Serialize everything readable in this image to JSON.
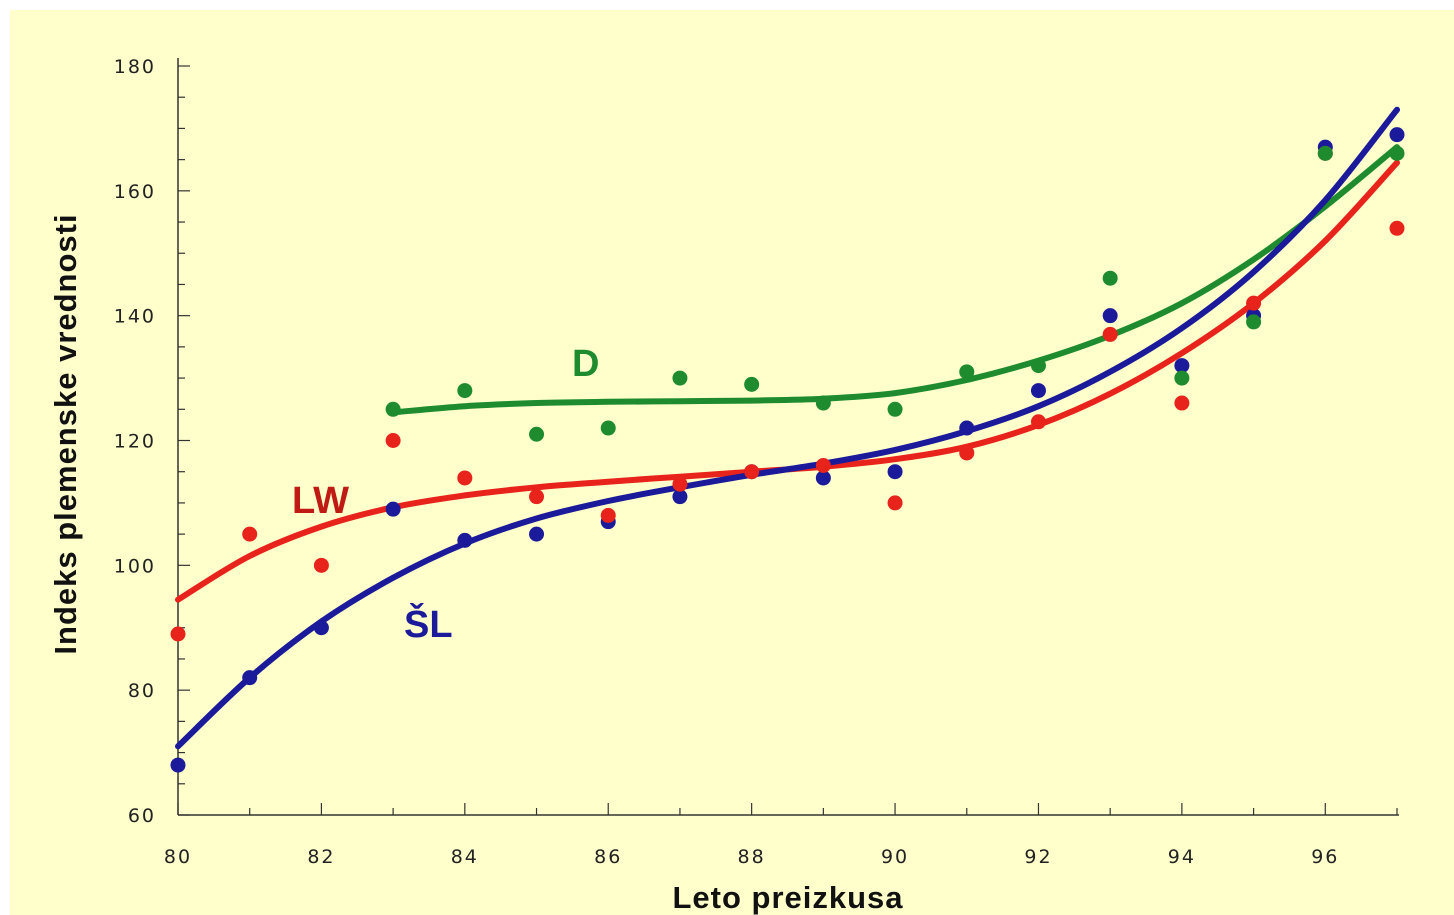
{
  "chart_data": {
    "type": "scatter",
    "xlabel": "Leto preizkusa",
    "ylabel": "Indeks plemenske vrednosti",
    "xlim": [
      80,
      97
    ],
    "ylim": [
      60,
      180
    ],
    "xticks": [
      "80",
      "82",
      "84",
      "86",
      "88",
      "90",
      "92",
      "94",
      "96"
    ],
    "yticks": [
      "60",
      "80",
      "100",
      "120",
      "140",
      "160",
      "180"
    ],
    "grid": false,
    "series": [
      {
        "name": "D",
        "color": "#1E8C2E",
        "x": [
          83,
          84,
          85,
          86,
          87,
          88,
          89,
          90,
          91,
          92,
          93,
          94,
          95,
          96,
          97
        ],
        "y": [
          125,
          128,
          121,
          122,
          130,
          129,
          126,
          125,
          131,
          132,
          146,
          130,
          139,
          166,
          166
        ],
        "trend": [
          [
            83,
            124.5
          ],
          [
            84,
            125.5
          ],
          [
            85,
            126
          ],
          [
            86,
            126.2
          ],
          [
            87,
            126.3
          ],
          [
            88,
            126.4
          ],
          [
            89,
            126.7
          ],
          [
            90,
            127.6
          ],
          [
            91,
            129.7
          ],
          [
            92,
            132.8
          ],
          [
            93,
            136.8
          ],
          [
            94,
            142
          ],
          [
            95,
            149
          ],
          [
            96,
            157.5
          ],
          [
            97,
            167
          ]
        ]
      },
      {
        "name": "LW",
        "color": "#E8231C",
        "x": [
          80,
          81,
          82,
          83,
          84,
          85,
          86,
          87,
          88,
          89,
          90,
          91,
          92,
          93,
          94,
          95,
          96,
          97
        ],
        "y": [
          89,
          105,
          100,
          120,
          114,
          111,
          108,
          113,
          115,
          116,
          110,
          118,
          123,
          137,
          126,
          142,
          166,
          154
        ],
        "trend": [
          [
            80,
            94.5
          ],
          [
            81,
            101.5
          ],
          [
            82,
            106.2
          ],
          [
            83,
            109.3
          ],
          [
            84,
            111.2
          ],
          [
            85,
            112.5
          ],
          [
            86,
            113.4
          ],
          [
            87,
            114.2
          ],
          [
            88,
            115
          ],
          [
            89,
            115.8
          ],
          [
            90,
            117
          ],
          [
            91,
            119
          ],
          [
            92,
            122.5
          ],
          [
            93,
            127.5
          ],
          [
            94,
            134
          ],
          [
            95,
            142
          ],
          [
            96,
            152
          ],
          [
            97,
            164.5
          ]
        ]
      },
      {
        "name": "ŠL",
        "color": "#1A1A9A",
        "x": [
          80,
          81,
          82,
          83,
          84,
          85,
          86,
          87,
          88,
          89,
          90,
          91,
          92,
          93,
          94,
          95,
          96,
          97
        ],
        "y": [
          68,
          82,
          90,
          109,
          104,
          105,
          107,
          111,
          115,
          114,
          115,
          122,
          128,
          140,
          132,
          140,
          167,
          169
        ],
        "trend": [
          [
            80,
            71
          ],
          [
            81,
            82
          ],
          [
            82,
            91
          ],
          [
            83,
            98
          ],
          [
            84,
            103.5
          ],
          [
            85,
            107.5
          ],
          [
            86,
            110.3
          ],
          [
            87,
            112.5
          ],
          [
            88,
            114.5
          ],
          [
            89,
            116.3
          ],
          [
            90,
            118.5
          ],
          [
            91,
            121.5
          ],
          [
            92,
            125.5
          ],
          [
            93,
            131
          ],
          [
            94,
            138
          ],
          [
            95,
            147
          ],
          [
            96,
            158.5
          ],
          [
            97,
            173
          ]
        ]
      }
    ]
  }
}
